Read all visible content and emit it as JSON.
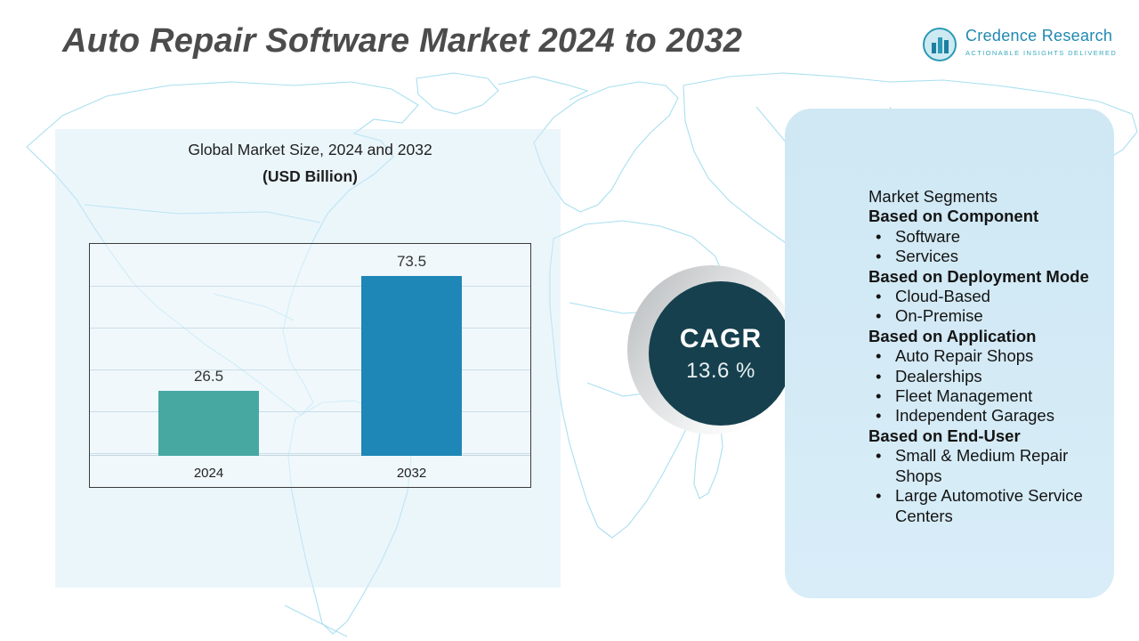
{
  "header": {
    "title": "Auto Repair Software Market 2024 to 2032",
    "logo": {
      "name": "Credence Research",
      "tagline": "Actionable Insights Delivered"
    }
  },
  "chart_data": {
    "type": "bar",
    "title": "Global Market Size, 2024 and 2032",
    "subtitle": "(USD Billion)",
    "categories": [
      "2024",
      "2032"
    ],
    "values": [
      26.5,
      73.5
    ],
    "bar_colors": [
      "#47a8a2",
      "#1e87b7"
    ],
    "xlabel": "",
    "ylabel": "",
    "ylim": [
      0,
      80
    ],
    "grid": true,
    "legend": "none"
  },
  "cagr": {
    "label": "CAGR",
    "value": "13.6 %"
  },
  "segments": {
    "title": "Market Segments",
    "groups": [
      {
        "heading": "Based on Component",
        "items": [
          "Software",
          "Services"
        ]
      },
      {
        "heading": "Based on Deployment Mode",
        "items": [
          "Cloud-Based",
          "On-Premise"
        ]
      },
      {
        "heading": "Based on Application",
        "items": [
          "Auto Repair Shops",
          "Dealerships",
          "Fleet Management",
          "Independent Garages"
        ]
      },
      {
        "heading": "Based on End-User",
        "items": [
          "Small & Medium Repair Shops",
          "Large Automotive Service Centers"
        ]
      }
    ]
  },
  "colors": {
    "bar_2024": "#47a8a2",
    "bar_2032": "#1e87b7",
    "cagr_circle": "#16404e",
    "panel_background": "#d3eaf6",
    "map_line": "#a9dff0",
    "logo_blue": "#2088b1",
    "title_gray": "#4c4c4c"
  }
}
